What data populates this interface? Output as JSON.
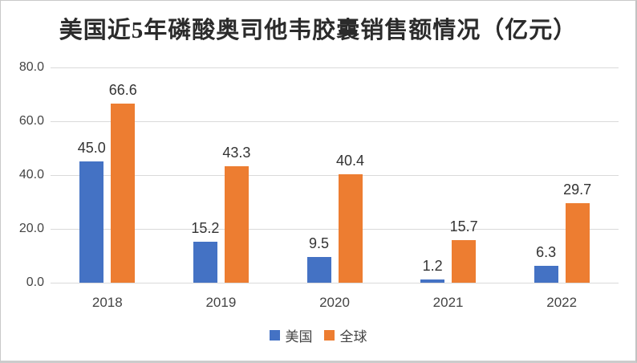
{
  "title": "美国近5年磷酸奥司他韦胶囊销售额情况（亿元）",
  "colors": {
    "us_series": "#4472C4",
    "global_series": "#ED7D31",
    "gridline": "#DADADA",
    "axis_text": "#444444",
    "data_label_text": "#333333",
    "title_text": "#2B2B2B",
    "canvas_border": "#C9C9C9",
    "background": "#FFFFFF"
  },
  "legend": {
    "position": "bottom",
    "items": [
      {
        "key": "us",
        "label": "美国",
        "color": "#4472C4"
      },
      {
        "key": "global",
        "label": "全球",
        "color": "#ED7D31"
      }
    ]
  },
  "chart_data": {
    "type": "bar",
    "title": "美国近5年磷酸奥司他韦胶囊销售额情况（亿元）",
    "categories": [
      "2018",
      "2019",
      "2020",
      "2021",
      "2022"
    ],
    "series": [
      {
        "key": "us",
        "name": "美国",
        "color": "#4472C4",
        "values": [
          45.0,
          15.2,
          9.5,
          1.2,
          6.3
        ],
        "labels": [
          "45.0",
          "15.2",
          "9.5",
          "1.2",
          "6.3"
        ]
      },
      {
        "key": "global",
        "name": "全球",
        "color": "#ED7D31",
        "values": [
          66.6,
          43.3,
          40.4,
          15.7,
          29.7
        ],
        "labels": [
          "66.6",
          "43.3",
          "40.4",
          "15.7",
          "29.7"
        ]
      }
    ],
    "xlabel": "",
    "ylabel": "",
    "ylim": [
      0,
      80
    ],
    "yticks": [
      "0.0",
      "20.0",
      "40.0",
      "60.0",
      "80.0"
    ],
    "grid": true,
    "legend_position": "bottom"
  }
}
